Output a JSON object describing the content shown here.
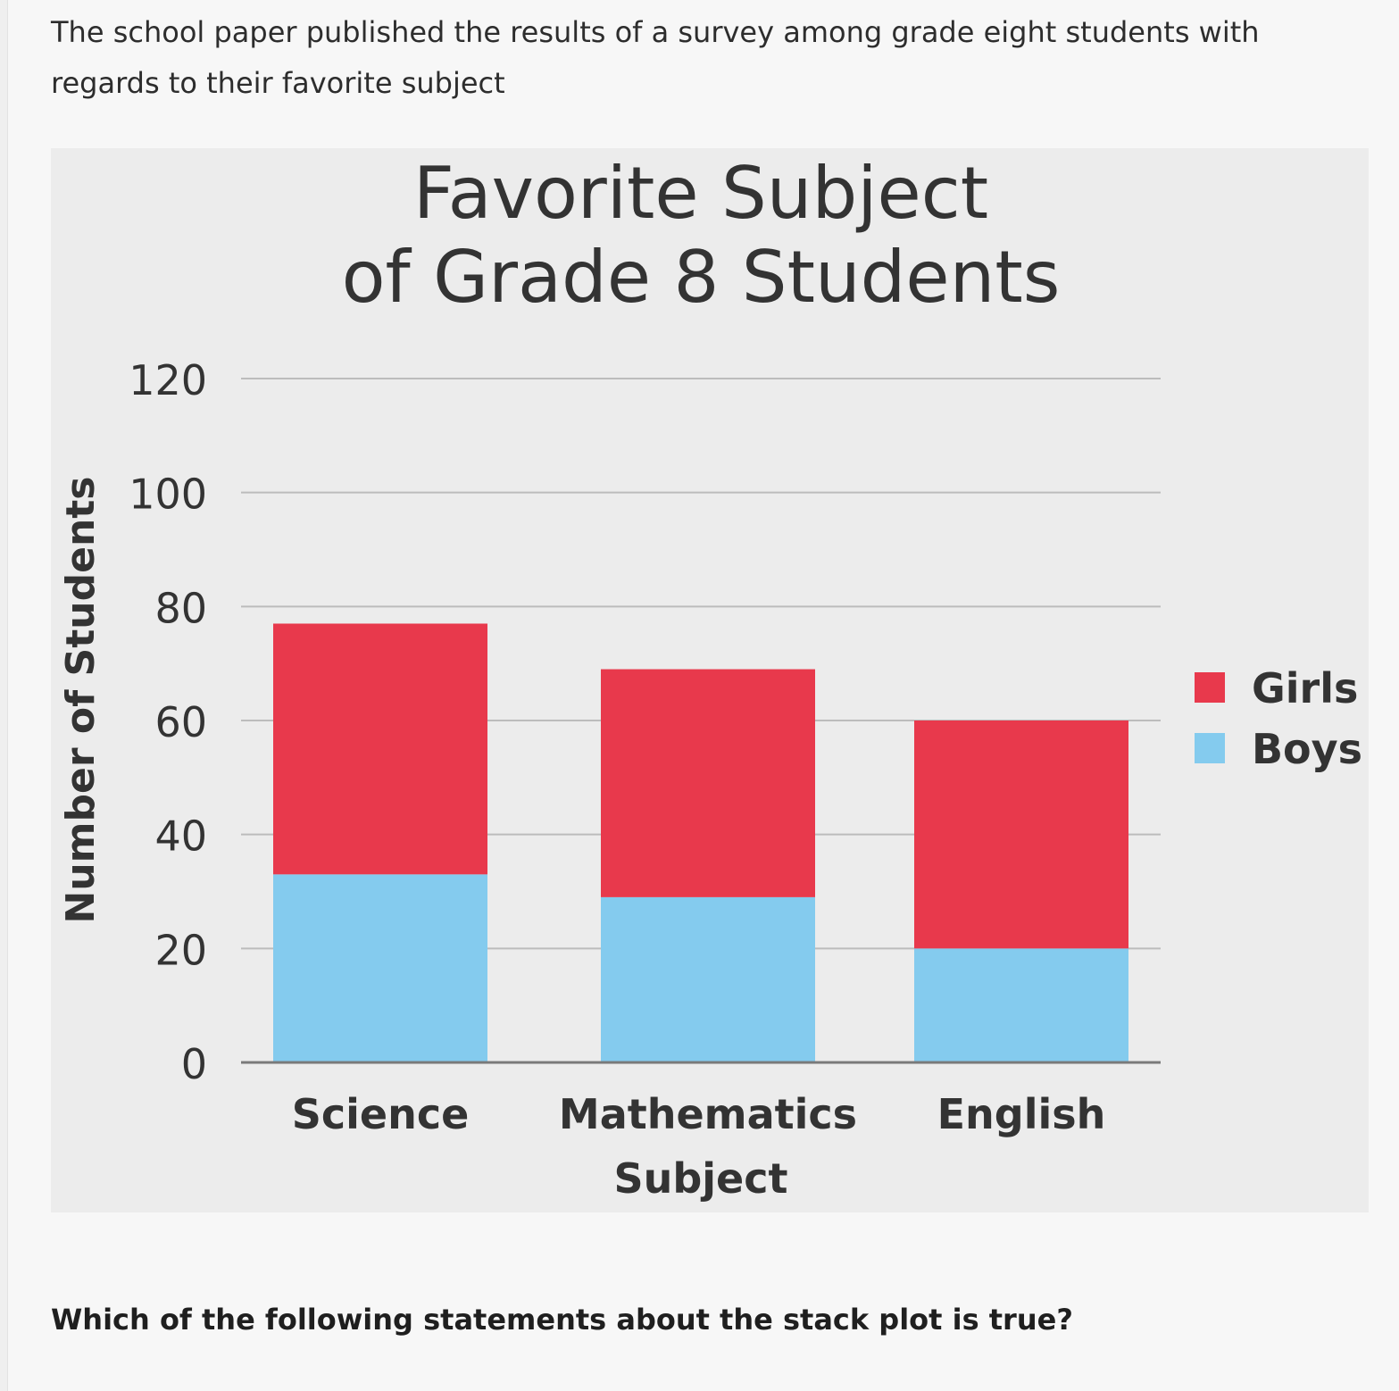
{
  "intro_text": "The school paper published the results of a survey among grade eight students with regards to their favorite subject",
  "question_text": "Which of the following statements about the stack plot is true?",
  "colors": {
    "girls": "#e8394c",
    "boys": "#84cbee",
    "grid": "#bcbcbc",
    "panel": "#ececec"
  },
  "chart_data": {
    "type": "bar",
    "stacked": true,
    "title": "Favorite Subject of Grade 8 Students",
    "title_lines": [
      "Favorite Subject",
      "of Grade 8 Students"
    ],
    "xlabel": "Subject",
    "ylabel": "Number of Students",
    "categories": [
      "Science",
      "Mathematics",
      "English"
    ],
    "series": [
      {
        "name": "Boys",
        "values": [
          33,
          29,
          20
        ]
      },
      {
        "name": "Girls",
        "values": [
          44,
          40,
          40
        ]
      }
    ],
    "ylim": [
      0,
      120
    ],
    "yticks": [
      0,
      20,
      40,
      60,
      80,
      100,
      120
    ],
    "grid": true,
    "legend": {
      "position": "right",
      "order": [
        "Girls",
        "Boys"
      ]
    }
  }
}
